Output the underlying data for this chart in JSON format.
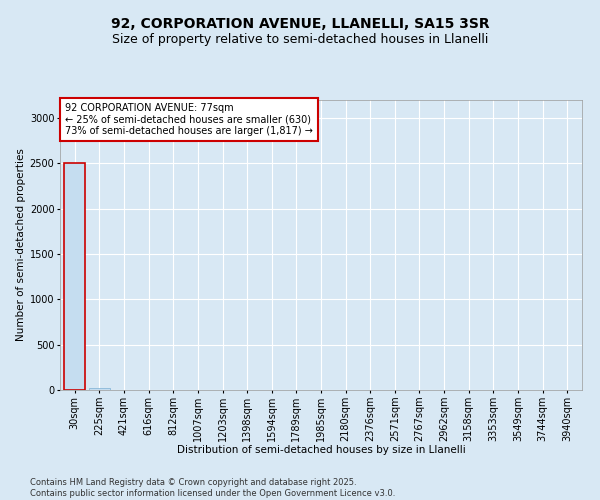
{
  "title_line1": "92, CORPORATION AVENUE, LLANELLI, SA15 3SR",
  "title_line2": "Size of property relative to semi-detached houses in Llanelli",
  "xlabel": "Distribution of semi-detached houses by size in Llanelli",
  "ylabel": "Number of semi-detached properties",
  "annotation_title": "92 CORPORATION AVENUE: 77sqm",
  "annotation_line2": "← 25% of semi-detached houses are smaller (630)",
  "annotation_line3": "73% of semi-detached houses are larger (1,817) →",
  "footer_line1": "Contains HM Land Registry data © Crown copyright and database right 2025.",
  "footer_line2": "Contains public sector information licensed under the Open Government Licence v3.0.",
  "categories": [
    "30sqm",
    "225sqm",
    "421sqm",
    "616sqm",
    "812sqm",
    "1007sqm",
    "1203sqm",
    "1398sqm",
    "1594sqm",
    "1789sqm",
    "1985sqm",
    "2180sqm",
    "2376sqm",
    "2571sqm",
    "2767sqm",
    "2962sqm",
    "3158sqm",
    "3353sqm",
    "3549sqm",
    "3744sqm",
    "3940sqm"
  ],
  "values": [
    2500,
    20,
    5,
    3,
    2,
    2,
    1,
    1,
    1,
    1,
    1,
    1,
    1,
    1,
    1,
    1,
    1,
    1,
    1,
    1,
    1
  ],
  "bar_color": "#c5ddf0",
  "bar_edge_color": "#7bafd4",
  "highlight_bar_edgecolor": "#cc0000",
  "annotation_box_edgecolor": "#cc0000",
  "ylim": [
    0,
    3200
  ],
  "yticks": [
    0,
    500,
    1000,
    1500,
    2000,
    2500,
    3000
  ],
  "background_color": "#d8e8f4",
  "plot_bg_color": "#d8e8f4",
  "grid_color": "#ffffff",
  "title1_fontsize": 10,
  "title2_fontsize": 9,
  "axis_label_fontsize": 7.5,
  "tick_fontsize": 7,
  "annotation_fontsize": 7,
  "footer_fontsize": 6,
  "figsize": [
    6.0,
    5.0
  ],
  "dpi": 100
}
